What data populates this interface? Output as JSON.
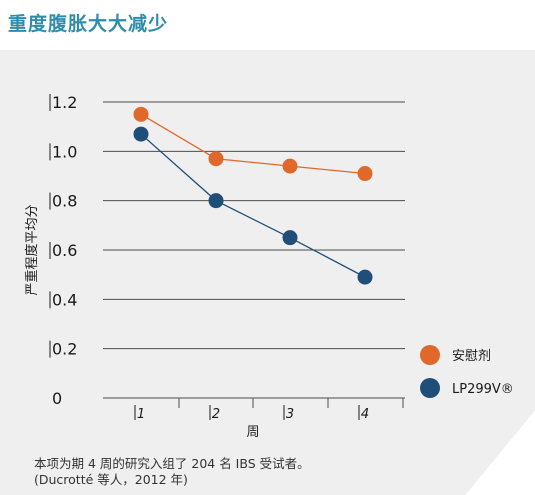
{
  "title": "重度腹胀大大减少",
  "note": {
    "line1": "本项为期 4 周的研究入组了 204 名 IBS 受试者。",
    "line2": "(Ducrotté 等人，2012 年)"
  },
  "colors": {
    "title": "#2f8dab",
    "placebo": "#e0682a",
    "lp299v": "#1f4e79",
    "grid": "#4d4d4d",
    "background": "#efefef"
  },
  "chart_data": {
    "type": "line",
    "title": "",
    "xlabel": "周",
    "ylabel": "严重程度平均分",
    "categories": [
      "1",
      "2",
      "3",
      "4"
    ],
    "y_tick_labels": [
      "0",
      "0.2",
      "0.4",
      "0.6",
      "0.8",
      "1.0",
      "1.2"
    ],
    "ylim": [
      0,
      1.2
    ],
    "grid": true,
    "legend_position": "right",
    "series": [
      {
        "name": "安慰剂",
        "values": [
          1.15,
          0.97,
          0.94,
          0.91
        ],
        "color": "#e0682a"
      },
      {
        "name": "LP299V®",
        "values": [
          1.07,
          0.8,
          0.65,
          0.49
        ],
        "color": "#1f4e79"
      }
    ]
  }
}
